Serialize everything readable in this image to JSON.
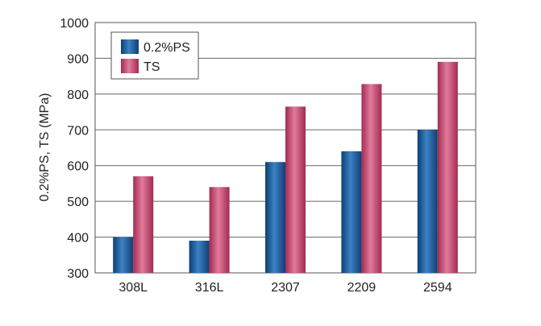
{
  "chart_data": {
    "type": "bar",
    "categories": [
      "308L",
      "316L",
      "2307",
      "2209",
      "2594"
    ],
    "series": [
      {
        "name": "0.2%PS",
        "values": [
          400,
          390,
          610,
          640,
          700
        ],
        "color": "#1f5f9e"
      },
      {
        "name": "TS",
        "values": [
          570,
          540,
          765,
          828,
          890
        ],
        "color": "#c4456d"
      }
    ],
    "title": "",
    "xlabel": "",
    "ylabel": "0.2%PS, TS (MPa)",
    "ylim": [
      300,
      1000
    ],
    "yticks": [
      300,
      400,
      500,
      600,
      700,
      800,
      900,
      1000
    ],
    "grid": true,
    "legend": "top-left"
  }
}
